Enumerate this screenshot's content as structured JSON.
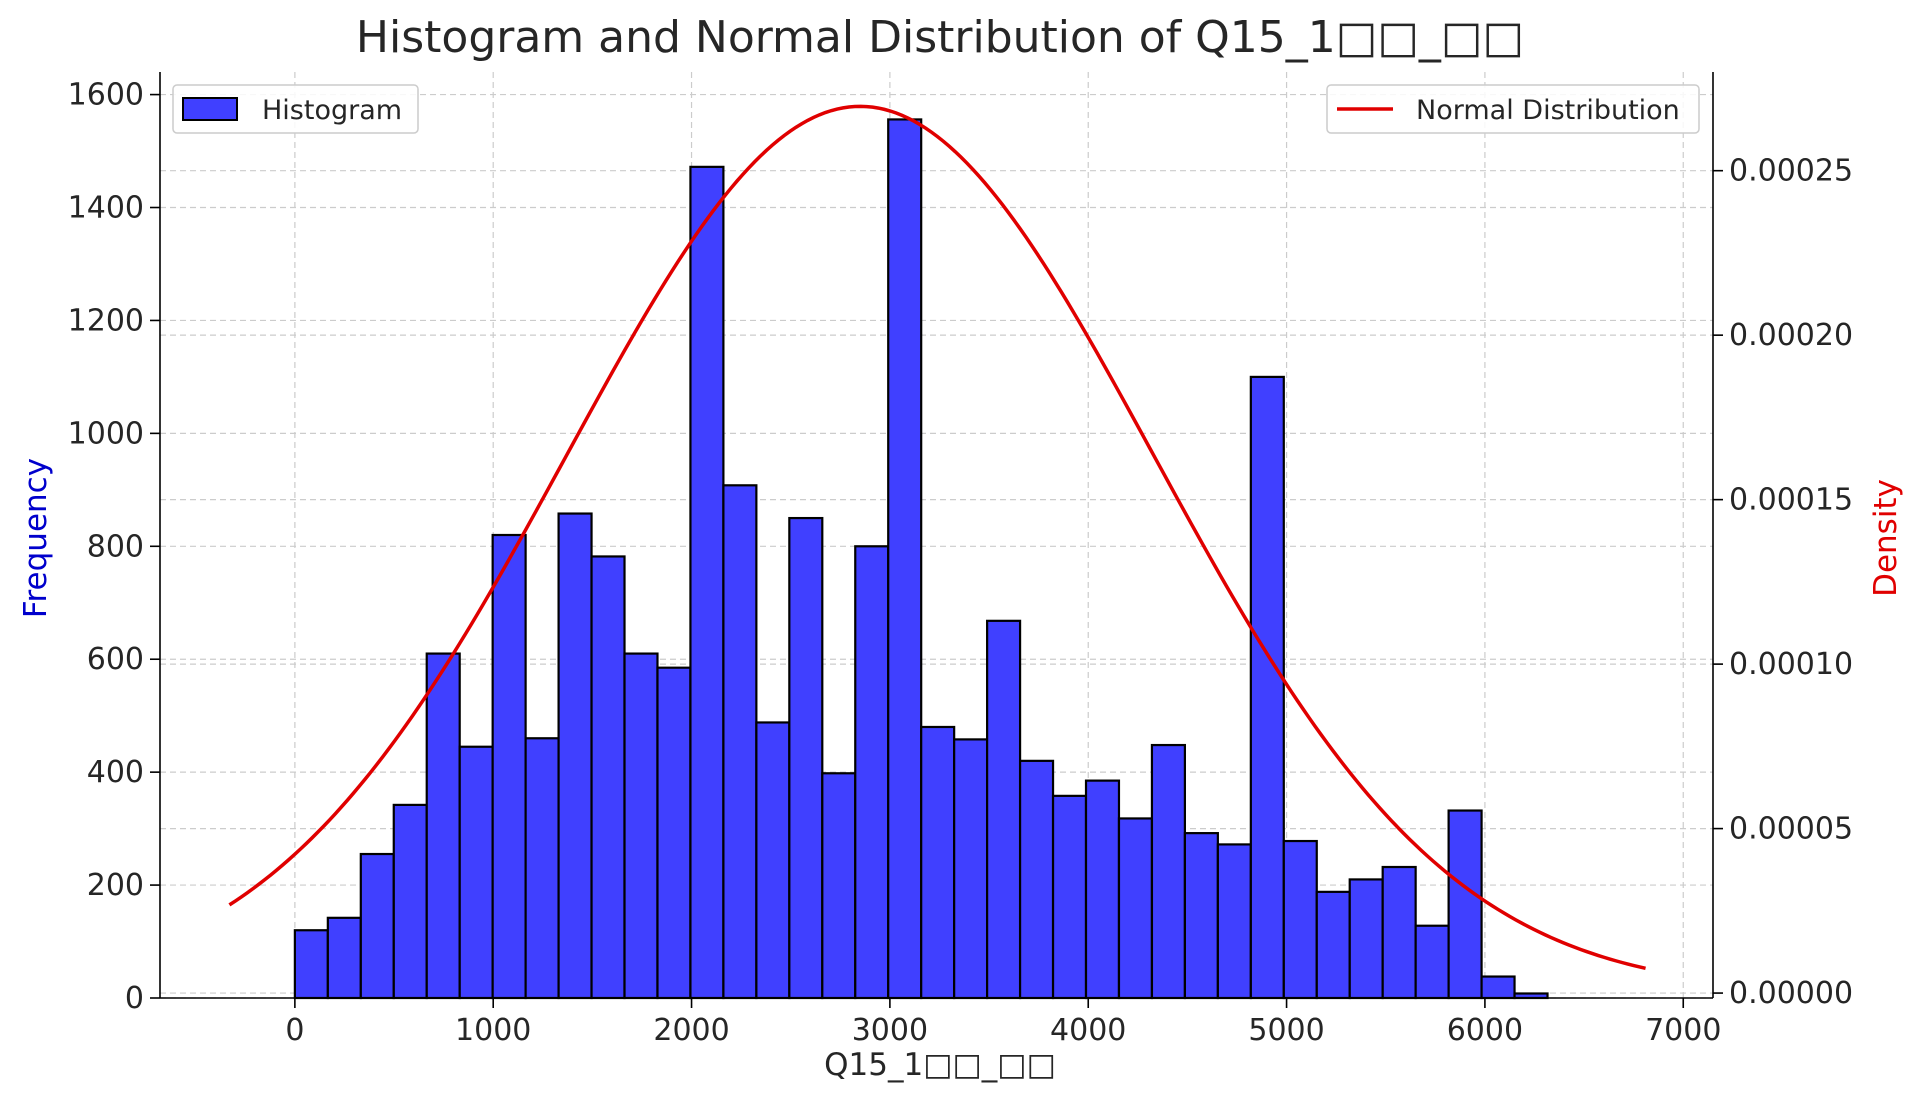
{
  "chart_data": {
    "type": "bar",
    "title": "Histogram and Normal Distribution of Q15_1□□_□□",
    "xlabel": "Q15_1□□_□□",
    "ylabel": "Frequency",
    "ylabel_right": "Density",
    "xlim": [
      -680,
      7150
    ],
    "ylim": [
      0,
      1640
    ],
    "ylim_right": [
      -1.5e-06,
      0.00028
    ],
    "x_ticks": [
      0,
      1000,
      2000,
      3000,
      4000,
      5000,
      6000,
      7000
    ],
    "y_ticks": [
      0,
      200,
      400,
      600,
      800,
      1000,
      1200,
      1400,
      1600
    ],
    "y_ticks_right": [
      "0.00000",
      "0.00005",
      "0.00010",
      "0.00015",
      "0.00020",
      "0.00025"
    ],
    "y_ticks_right_values": [
      0,
      5e-05,
      0.0001,
      0.00015,
      0.0002,
      0.00025
    ],
    "grid": true,
    "series": [
      {
        "name": "Histogram",
        "type": "histogram",
        "color": "#4040ff",
        "bin_start": 0,
        "bin_width": 166.2,
        "values": [
          120,
          142,
          255,
          342,
          610,
          445,
          820,
          460,
          858,
          782,
          610,
          585,
          1472,
          908,
          488,
          850,
          398,
          800,
          1556,
          480,
          458,
          668,
          420,
          358,
          385,
          318,
          448,
          292,
          272,
          1100,
          278,
          188,
          210,
          232,
          128,
          332,
          38,
          8
        ]
      },
      {
        "name": "Normal Distribution",
        "type": "line",
        "color": "#e00000",
        "mean": 2850,
        "std": 1480,
        "x_range": [
          -330,
          6810
        ]
      }
    ],
    "legend": [
      {
        "label": "Histogram",
        "placement": "top-left"
      },
      {
        "label": "Normal Distribution",
        "placement": "top-right"
      }
    ],
    "colors": {
      "left_axis_label": "#0000cc",
      "right_axis_label": "#e00000"
    }
  }
}
